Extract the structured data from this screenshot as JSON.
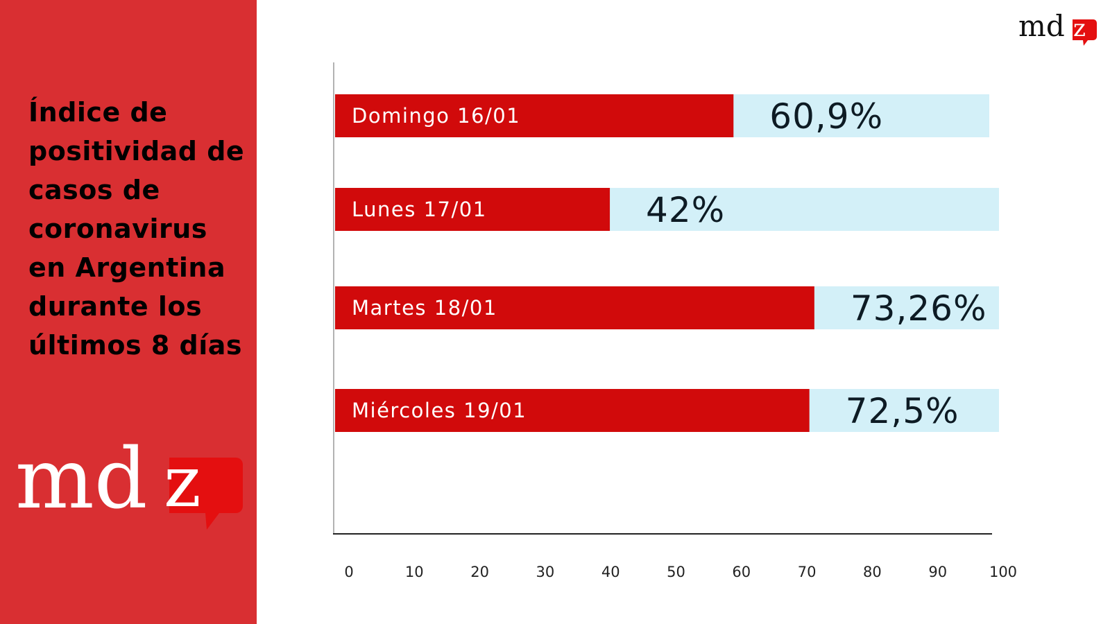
{
  "sidebar": {
    "title": "Índice de positividad de casos de coronavirus en Argentina durante los últimos 8 días",
    "logo_text_md": "md",
    "logo_text_z": "z"
  },
  "header": {
    "logo_text_md": "md",
    "logo_text_z": "z"
  },
  "colors": {
    "sidebar_bg": "#d92f32",
    "bar_fill": "#d10a0b",
    "bar_track": "#d3f0f8",
    "axis": "#222222"
  },
  "chart_data": {
    "type": "bar",
    "orientation": "horizontal",
    "title": "Índice de positividad de casos de coronavirus en Argentina durante los últimos 8 días",
    "xlabel": "",
    "ylabel": "",
    "xlim": [
      0,
      100
    ],
    "x_ticks": [
      "0",
      "10",
      "20",
      "30",
      "40",
      "50",
      "60",
      "70",
      "80",
      "90",
      "100"
    ],
    "categories": [
      "Domingo 16/01",
      "Lunes 17/01",
      "Martes 18/01",
      "Miércoles 19/01"
    ],
    "values": [
      60.9,
      42,
      73.26,
      72.5
    ],
    "value_labels": [
      "60,9%",
      "42%",
      "73,26%",
      "72,5%"
    ],
    "grid": false,
    "legend": "none"
  }
}
